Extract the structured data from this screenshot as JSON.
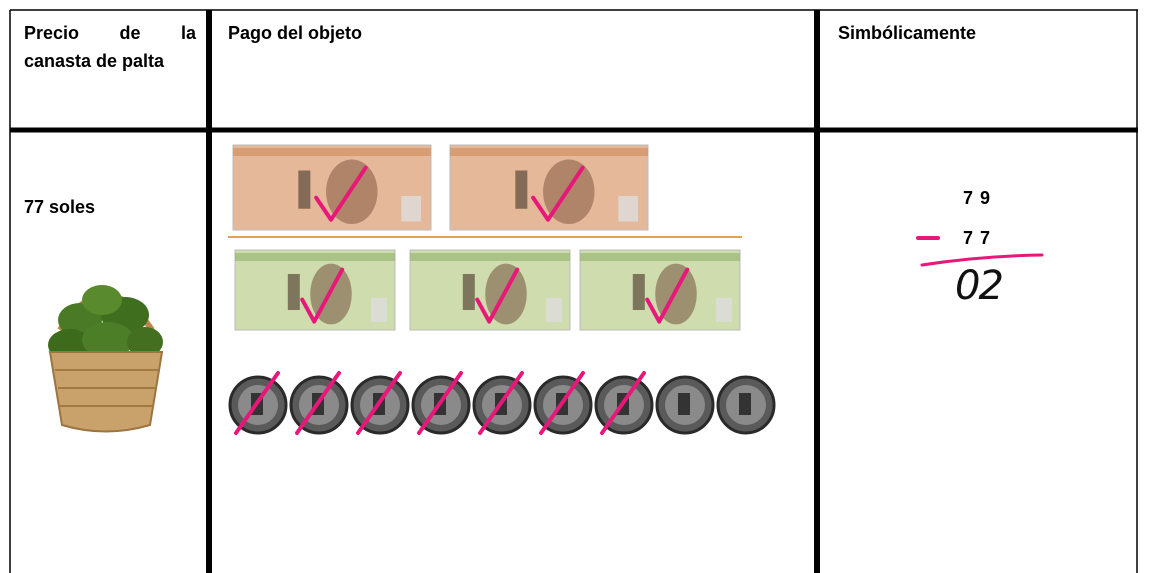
{
  "header": {
    "price": "Precio de la canasta de palta",
    "payment": "Pago del objeto",
    "symbolic": "Simbólicamente"
  },
  "body": {
    "price": "77 soles"
  },
  "symbolic": {
    "minuend": "7 9",
    "subtrahend": "7 7",
    "result": "02"
  }
}
